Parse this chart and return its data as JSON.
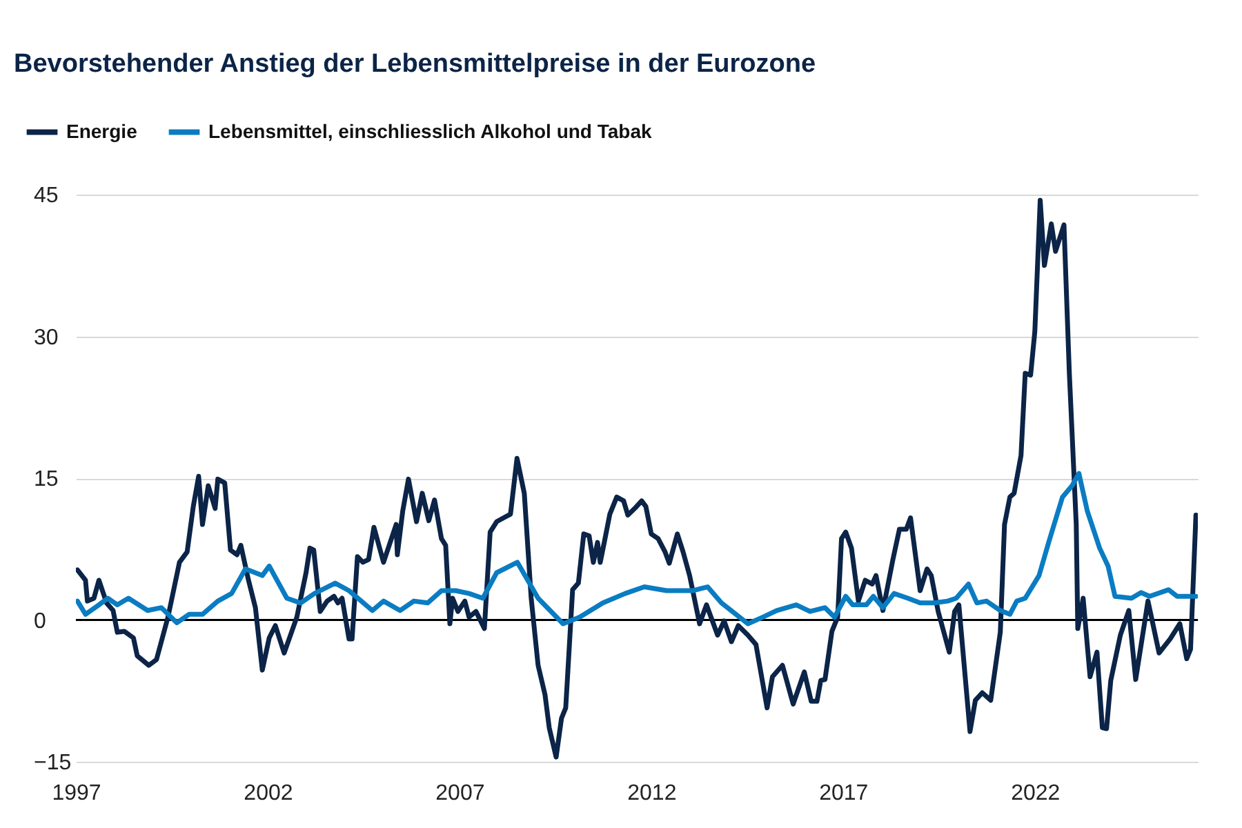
{
  "chart_data": {
    "type": "line",
    "title": "Bevorstehender Anstieg der Lebensmittelpreise in der Eurozone",
    "xlim": [
      1997,
      2026.25
    ],
    "xticks": [
      1997,
      2002,
      2007,
      2012,
      2017,
      2022
    ],
    "ylim": [
      -15,
      45
    ],
    "yticks": [
      -15,
      0,
      15,
      30,
      45
    ],
    "grid": "y",
    "legend": "top left",
    "line_style": "solid",
    "ref_lines": [
      {
        "axis": "y",
        "value": 0,
        "color": "#000000"
      }
    ],
    "series": [
      {
        "name": "Energie",
        "color": "#0b2447",
        "x": [
          1997.04,
          1997.25,
          1997.3,
          1997.47,
          1997.6,
          1997.8,
          1997.97,
          1998.08,
          1998.26,
          1998.5,
          1998.6,
          1998.9,
          1999.1,
          1999.4,
          1999.7,
          1999.9,
          2000.06,
          2000.2,
          2000.3,
          2000.45,
          2000.63,
          2000.7,
          2000.88,
          2001.03,
          2001.2,
          2001.3,
          2001.5,
          2001.68,
          2001.86,
          2002.04,
          2002.2,
          2002.43,
          2002.76,
          2003.0,
          2003.1,
          2003.2,
          2003.37,
          2003.55,
          2003.73,
          2003.83,
          2003.94,
          2004.12,
          2004.2,
          2004.34,
          2004.48,
          2004.63,
          2004.77,
          2005.02,
          2005.35,
          2005.38,
          2005.52,
          2005.67,
          2005.88,
          2006.03,
          2006.2,
          2006.35,
          2006.53,
          2006.64,
          2006.75,
          2006.82,
          2006.96,
          2007.14,
          2007.25,
          2007.43,
          2007.65,
          2007.8,
          2007.97,
          2008.15,
          2008.33,
          2008.5,
          2008.69,
          2008.87,
          2009.05,
          2009.23,
          2009.34,
          2009.52,
          2009.66,
          2009.77,
          2009.95,
          2010.1,
          2010.24,
          2010.38,
          2010.49,
          2010.6,
          2010.67,
          2010.78,
          2010.92,
          2011.1,
          2011.28,
          2011.39,
          2011.57,
          2011.75,
          2011.86,
          2012.0,
          2012.18,
          2012.36,
          2012.47,
          2012.68,
          2012.83,
          2013.0,
          2013.26,
          2013.44,
          2013.73,
          2013.9,
          2014.09,
          2014.27,
          2014.52,
          2014.73,
          2015.02,
          2015.16,
          2015.42,
          2015.7,
          2015.99,
          2016.17,
          2016.32,
          2016.42,
          2016.53,
          2016.71,
          2016.86,
          2016.96,
          2017.07,
          2017.22,
          2017.4,
          2017.58,
          2017.76,
          2017.86,
          2018.04,
          2018.3,
          2018.47,
          2018.65,
          2018.76,
          2019.01,
          2019.19,
          2019.3,
          2019.48,
          2019.77,
          2019.91,
          2020.02,
          2020.31,
          2020.45,
          2020.63,
          2020.85,
          2021.1,
          2021.21,
          2021.35,
          2021.46,
          2021.64,
          2021.75,
          2021.89,
          2022.0,
          2022.14,
          2022.25,
          2022.43,
          2022.54,
          2022.76,
          2022.9,
          2023.08,
          2023.12,
          2023.26,
          2023.44,
          2023.62,
          2023.76,
          2023.87,
          2023.98,
          2024.23,
          2024.45,
          2024.63,
          2024.95,
          2025.24,
          2025.53,
          2025.78,
          2025.96,
          2026.06,
          2026.2
        ],
        "values": [
          5.3,
          4.2,
          2.0,
          2.3,
          4.2,
          1.8,
          1.0,
          -1.3,
          -1.2,
          -1.9,
          -3.8,
          -4.8,
          -4.2,
          0.3,
          6.1,
          7.2,
          12.0,
          15.2,
          10.1,
          14.2,
          11.8,
          14.9,
          14.5,
          7.4,
          6.9,
          7.9,
          4.2,
          1.3,
          -5.3,
          -1.9,
          -0.6,
          -3.5,
          0.3,
          5.0,
          7.6,
          7.4,
          0.9,
          2.0,
          2.5,
          1.8,
          2.3,
          -2.0,
          -2.0,
          6.7,
          6.1,
          6.4,
          9.8,
          6.1,
          10.1,
          6.9,
          11.5,
          14.9,
          10.4,
          13.4,
          10.5,
          12.7,
          8.6,
          7.9,
          -0.4,
          2.3,
          0.9,
          2.0,
          0.3,
          0.9,
          -0.9,
          9.3,
          10.4,
          10.8,
          11.2,
          17.1,
          13.4,
          2.3,
          -4.8,
          -7.9,
          -11.4,
          -14.5,
          -10.4,
          -9.3,
          3.2,
          3.9,
          9.1,
          8.9,
          6.1,
          8.2,
          6.1,
          8.3,
          11.2,
          13.0,
          12.6,
          11.1,
          11.8,
          12.6,
          12.0,
          9.1,
          8.6,
          7.2,
          6.0,
          9.1,
          7.2,
          4.7,
          -0.4,
          1.6,
          -1.6,
          -0.1,
          -2.3,
          -0.6,
          -1.6,
          -2.6,
          -9.3,
          -6.0,
          -4.8,
          -8.9,
          -5.5,
          -8.6,
          -8.6,
          -6.4,
          -6.3,
          -1.2,
          0.3,
          8.6,
          9.3,
          7.6,
          2.0,
          4.2,
          3.8,
          4.7,
          1.0,
          6.4,
          9.6,
          9.6,
          10.8,
          3.1,
          5.4,
          4.7,
          0.9,
          -3.4,
          0.9,
          1.6,
          -11.8,
          -8.5,
          -7.7,
          -8.5,
          -1.3,
          10.1,
          13.0,
          13.4,
          17.4,
          26.1,
          25.9,
          30.5,
          44.4,
          37.5,
          41.9,
          39.0,
          41.8,
          26.1,
          10.1,
          -0.9,
          2.3,
          -6.0,
          -3.4,
          -11.4,
          -11.5,
          -6.4,
          -1.6,
          1.0,
          -6.3,
          2.0,
          -3.5,
          -2.0,
          -0.4,
          -4.1,
          -3.1,
          11.1
        ]
      },
      {
        "name": "Lebensmittel, einschliesslich Alkohol und Tabak",
        "color": "#0a7cc2",
        "x": [
          1997.04,
          1997.25,
          1997.6,
          1997.83,
          1998.08,
          1998.37,
          1998.87,
          1999.23,
          1999.63,
          1999.95,
          2000.3,
          2000.7,
          2001.06,
          2001.42,
          2001.86,
          2002.04,
          2002.5,
          2002.86,
          2003.22,
          2003.76,
          2004.12,
          2004.73,
          2005.02,
          2005.45,
          2005.81,
          2006.17,
          2006.53,
          2006.9,
          2007.25,
          2007.61,
          2007.97,
          2008.51,
          2009.05,
          2009.7,
          2010.13,
          2010.74,
          2011.32,
          2011.82,
          2012.4,
          2013.08,
          2013.47,
          2013.83,
          2014.52,
          2014.91,
          2015.27,
          2015.78,
          2016.14,
          2016.53,
          2016.78,
          2017.07,
          2017.25,
          2017.61,
          2017.79,
          2018.04,
          2018.33,
          2018.69,
          2019.01,
          2019.37,
          2019.73,
          2019.95,
          2020.27,
          2020.49,
          2020.74,
          2021.1,
          2021.35,
          2021.53,
          2021.75,
          2022.11,
          2022.36,
          2022.72,
          2022.97,
          2023.15,
          2023.37,
          2023.69,
          2023.91,
          2024.09,
          2024.52,
          2024.77,
          2024.99,
          2025.49,
          2025.71,
          2026.2
        ],
        "values": [
          2.0,
          0.6,
          1.6,
          2.3,
          1.6,
          2.3,
          1.0,
          1.3,
          -0.3,
          0.6,
          0.6,
          2.0,
          2.8,
          5.4,
          4.7,
          5.7,
          2.3,
          1.8,
          2.8,
          3.9,
          3.1,
          1.0,
          2.0,
          1.0,
          2.0,
          1.8,
          3.1,
          3.1,
          2.8,
          2.3,
          5.0,
          6.1,
          2.3,
          -0.4,
          0.3,
          1.8,
          2.8,
          3.5,
          3.1,
          3.1,
          3.5,
          1.8,
          -0.4,
          0.3,
          1.0,
          1.6,
          0.9,
          1.3,
          0.3,
          2.5,
          1.6,
          1.6,
          2.5,
          1.3,
          2.8,
          2.3,
          1.8,
          1.8,
          2.0,
          2.3,
          3.8,
          1.8,
          2.0,
          1.0,
          0.6,
          2.0,
          2.3,
          4.7,
          8.2,
          13.0,
          14.2,
          15.5,
          11.5,
          7.6,
          5.7,
          2.5,
          2.3,
          2.9,
          2.5,
          3.2,
          2.5,
          2.5
        ]
      }
    ]
  }
}
